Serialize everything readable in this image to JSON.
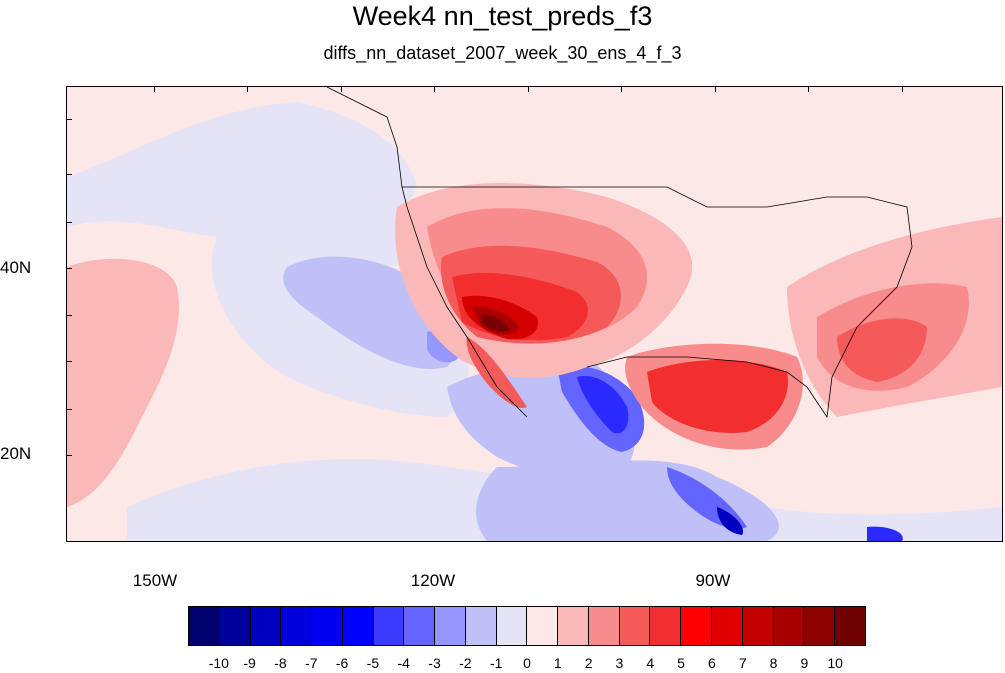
{
  "title": "Week4 nn_test_preds_f3",
  "subtitle": "diffs_nn_dataset_2007_week_30_ens_4_f_3",
  "axes": {
    "lat_labels": [
      "40N",
      "20N"
    ],
    "lon_labels": [
      "150W",
      "120W",
      "90W"
    ]
  },
  "colorbar": {
    "labels": [
      "-10",
      "-9",
      "-8",
      "-7",
      "-6",
      "-5",
      "-4",
      "-3",
      "-2",
      "-1",
      "0",
      "1",
      "2",
      "3",
      "4",
      "5",
      "6",
      "7",
      "8",
      "9",
      "10"
    ],
    "colors": [
      "#00006e",
      "#00009a",
      "#0000c0",
      "#0000dc",
      "#0000f0",
      "#0000ff",
      "#3c3cff",
      "#6464ff",
      "#9696ff",
      "#c0c0f8",
      "#e4e4f6",
      "#fde8e8",
      "#fbb8b8",
      "#f88c8c",
      "#f45a5a",
      "#f22e2e",
      "#ff0000",
      "#e00000",
      "#c40000",
      "#a80000",
      "#8c0000",
      "#6e0000"
    ]
  },
  "field_colors": {
    "background": "#fde8e8",
    "neutral_cool": "#e4e4f6",
    "cool_1": "#c0c0f8",
    "cool_2": "#9696ff",
    "cool_3": "#6464ff",
    "cool_4": "#2a2aff",
    "cool_5": "#0000c0",
    "warm_1": "#fbb8b8",
    "warm_2": "#f88c8c",
    "warm_3": "#f45a5a",
    "warm_4": "#f22e2e",
    "warm_5": "#d40000",
    "warm_6": "#a80000",
    "warm_7": "#780000"
  }
}
